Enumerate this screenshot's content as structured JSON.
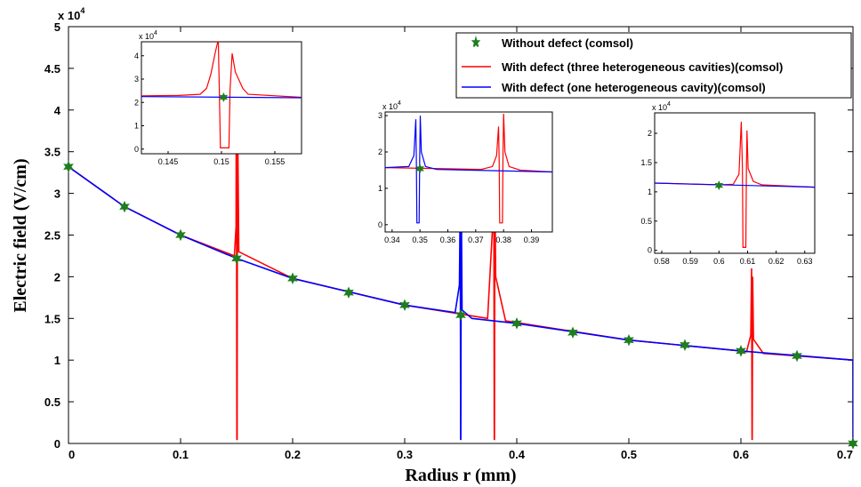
{
  "chart_data": [
    {
      "type": "line",
      "xlabel": "Radius r (mm)",
      "ylabel": "Electric field (V/cm)",
      "y_multiplier": "x 10",
      "y_exponent": "4",
      "xlim": [
        0,
        0.7
      ],
      "ylim": [
        0,
        5
      ],
      "x_ticks": [
        "0",
        "0.1",
        "0.2",
        "0.3",
        "0.4",
        "0.5",
        "0.6",
        "0.7"
      ],
      "y_ticks": [
        "0",
        "0.5",
        "1",
        "1.5",
        "2",
        "2.5",
        "3",
        "3.5",
        "4",
        "4.5",
        "5"
      ],
      "legend_position": "top-right",
      "series": [
        {
          "name": "Without defect (comsol)",
          "color": "#1e7d1e",
          "marker": "star",
          "x": [
            0,
            0.05,
            0.1,
            0.15,
            0.2,
            0.25,
            0.3,
            0.35,
            0.4,
            0.45,
            0.5,
            0.55,
            0.6,
            0.65,
            0.7
          ],
          "y": [
            3.32,
            2.84,
            2.5,
            2.22,
            1.98,
            1.81,
            1.66,
            1.54,
            1.44,
            1.33,
            1.24,
            1.18,
            1.11,
            1.05,
            0.0
          ]
        },
        {
          "name": "With defect (three heterogeneous cavities)(comsol)",
          "color": "#ff0000",
          "x": [
            0,
            0.05,
            0.1,
            0.148,
            0.1495,
            0.1498,
            0.1502,
            0.1505,
            0.1508,
            0.152,
            0.2,
            0.3,
            0.374,
            0.3788,
            0.3795,
            0.3799,
            0.3801,
            0.3805,
            0.3812,
            0.39,
            0.5,
            0.6,
            0.605,
            0.6088,
            0.6095,
            0.6099,
            0.6101,
            0.6105,
            0.6112,
            0.62,
            0.7
          ],
          "y": [
            3.32,
            2.84,
            2.5,
            2.25,
            2.6,
            4.7,
            0.05,
            0.05,
            4.1,
            2.3,
            1.98,
            1.66,
            1.5,
            2.7,
            2.95,
            0.05,
            0.05,
            3.05,
            2.0,
            1.47,
            1.24,
            1.11,
            1.1,
            1.3,
            2.1,
            0.05,
            0.05,
            2.0,
            1.25,
            1.08,
            1.0
          ]
        },
        {
          "name": "With defect (one heterogeneous cavity)(comsol)",
          "color": "#0000ff",
          "x": [
            0,
            0.05,
            0.1,
            0.15,
            0.2,
            0.3,
            0.345,
            0.3488,
            0.3495,
            0.3499,
            0.3501,
            0.3505,
            0.3512,
            0.36,
            0.4,
            0.5,
            0.6,
            0.6999,
            0.7
          ],
          "y": [
            3.32,
            2.84,
            2.5,
            2.22,
            1.98,
            1.66,
            1.57,
            1.9,
            2.9,
            0.05,
            0.05,
            3.0,
            1.6,
            1.5,
            1.44,
            1.24,
            1.11,
            1.0,
            0.0
          ]
        }
      ]
    },
    {
      "type": "line",
      "id": "inset-1",
      "y_multiplier": "x 10",
      "y_exponent": "4",
      "xlim": [
        0.1425,
        0.1575
      ],
      "ylim": [
        -0.2,
        4.6
      ],
      "x_ticks": [
        "0.145",
        "0.15",
        "0.155"
      ],
      "y_ticks": [
        "0",
        "1",
        "2",
        "3",
        "4"
      ],
      "series": [
        {
          "name": "Without defect (comsol)",
          "x": [
            0.1502
          ],
          "y": [
            2.22
          ]
        },
        {
          "name": "With defect (three heterogeneous cavities)(comsol)",
          "x": [
            0.1425,
            0.146,
            0.148,
            0.1486,
            0.149,
            0.1494,
            0.1497,
            0.1498,
            0.1499,
            0.1507,
            0.1508,
            0.151,
            0.1513,
            0.152,
            0.1525,
            0.1575
          ],
          "y": [
            2.28,
            2.3,
            2.35,
            2.6,
            3.2,
            4.1,
            4.7,
            2.5,
            0.05,
            0.05,
            2.5,
            4.1,
            3.3,
            2.6,
            2.35,
            2.22
          ]
        },
        {
          "name": "With defect (one heterogeneous cavity)(comsol)",
          "x": [
            0.1425,
            0.1575
          ],
          "y": [
            2.25,
            2.2
          ]
        }
      ]
    },
    {
      "type": "line",
      "id": "inset-2",
      "y_multiplier": "x 10",
      "y_exponent": "4",
      "xlim": [
        0.3375,
        0.3975
      ],
      "ylim": [
        -0.2,
        3.1
      ],
      "x_ticks": [
        "0.34",
        "0.35",
        "0.36",
        "0.37",
        "0.38",
        "0.39"
      ],
      "y_ticks": [
        "0",
        "1",
        "2",
        "3"
      ],
      "series": [
        {
          "name": "Without defect (comsol)",
          "x": [
            0.35
          ],
          "y": [
            1.54
          ]
        },
        {
          "name": "With defect (three heterogeneous cavities)(comsol)",
          "x": [
            0.3375,
            0.372,
            0.376,
            0.3775,
            0.3782,
            0.3784,
            0.3786,
            0.3796,
            0.3798,
            0.38,
            0.3805,
            0.382,
            0.386,
            0.3975
          ],
          "y": [
            1.57,
            1.52,
            1.6,
            1.9,
            2.7,
            1.8,
            0.05,
            0.05,
            1.9,
            3.05,
            2.0,
            1.6,
            1.5,
            1.45
          ]
        },
        {
          "name": "With defect (one heterogeneous cavity)(comsol)",
          "x": [
            0.3375,
            0.346,
            0.3478,
            0.3485,
            0.3487,
            0.3489,
            0.3497,
            0.3499,
            0.3501,
            0.3505,
            0.352,
            0.356,
            0.3975
          ],
          "y": [
            1.57,
            1.6,
            1.9,
            2.9,
            1.8,
            0.05,
            0.05,
            1.9,
            3.0,
            2.0,
            1.6,
            1.52,
            1.45
          ]
        }
      ]
    },
    {
      "type": "line",
      "id": "inset-3",
      "y_multiplier": "x 10",
      "y_exponent": "4",
      "xlim": [
        0.5775,
        0.6335
      ],
      "ylim": [
        -0.05,
        2.35
      ],
      "x_ticks": [
        "0.58",
        "0.59",
        "0.6",
        "0.61",
        "0.62",
        "0.63"
      ],
      "y_ticks": [
        "0",
        "0.5",
        "1",
        "1.5",
        "2"
      ],
      "series": [
        {
          "name": "Without defect (comsol)",
          "x": [
            0.6
          ],
          "y": [
            1.11
          ]
        },
        {
          "name": "With defect (three heterogeneous cavities)(comsol)",
          "x": [
            0.5775,
            0.6,
            0.605,
            0.607,
            0.6078,
            0.6082,
            0.6084,
            0.6094,
            0.6096,
            0.6098,
            0.6102,
            0.612,
            0.615,
            0.6335
          ],
          "y": [
            1.15,
            1.12,
            1.13,
            1.3,
            2.2,
            1.4,
            0.05,
            0.05,
            1.4,
            2.05,
            1.4,
            1.18,
            1.12,
            1.08
          ]
        },
        {
          "name": "With defect (one heterogeneous cavity)(comsol)",
          "x": [
            0.5775,
            0.6335
          ],
          "y": [
            1.15,
            1.08
          ]
        }
      ]
    }
  ]
}
